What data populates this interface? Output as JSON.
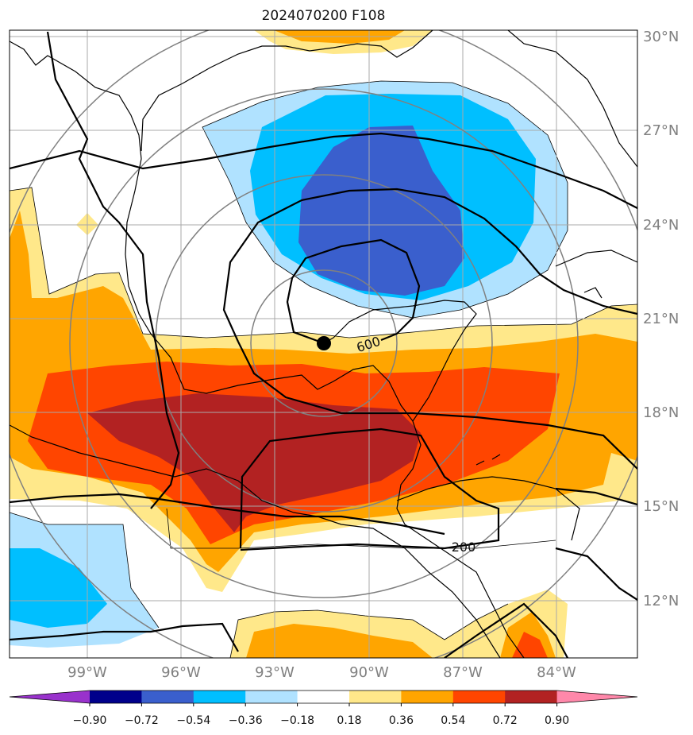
{
  "title": "2024070200 F108",
  "lat_labels": [
    "30°N",
    "27°N",
    "24°N",
    "21°N",
    "18°N",
    "15°N",
    "12°N"
  ],
  "lon_labels": [
    "99°W",
    "96°W",
    "93°W",
    "90°W",
    "87°W",
    "84°W"
  ],
  "contour_labels": [
    "600",
    "200"
  ],
  "colorbar": {
    "tick_labels": [
      "−0.90",
      "−0.72",
      "−0.54",
      "−0.36",
      "−0.18",
      "0.18",
      "0.36",
      "0.54",
      "0.72",
      "0.90"
    ],
    "colors": [
      "#9932cc",
      "#00008b",
      "#3a5fcd",
      "#00bfff",
      "#b0e2ff",
      "#ffffff",
      "#ffe88a",
      "#ffa500",
      "#ff4500",
      "#b22222",
      "#ff88aa"
    ]
  },
  "colors": {
    "neg_light": "#b0e2ff",
    "neg_mid": "#00bfff",
    "neg_dark": "#3a5fcd",
    "pos_light": "#ffe88a",
    "pos_mid": "#ffa500",
    "pos_high": "#ff4500",
    "pos_max": "#b22222",
    "grid": "#a9a9a9",
    "range_ring": "#808080"
  }
}
